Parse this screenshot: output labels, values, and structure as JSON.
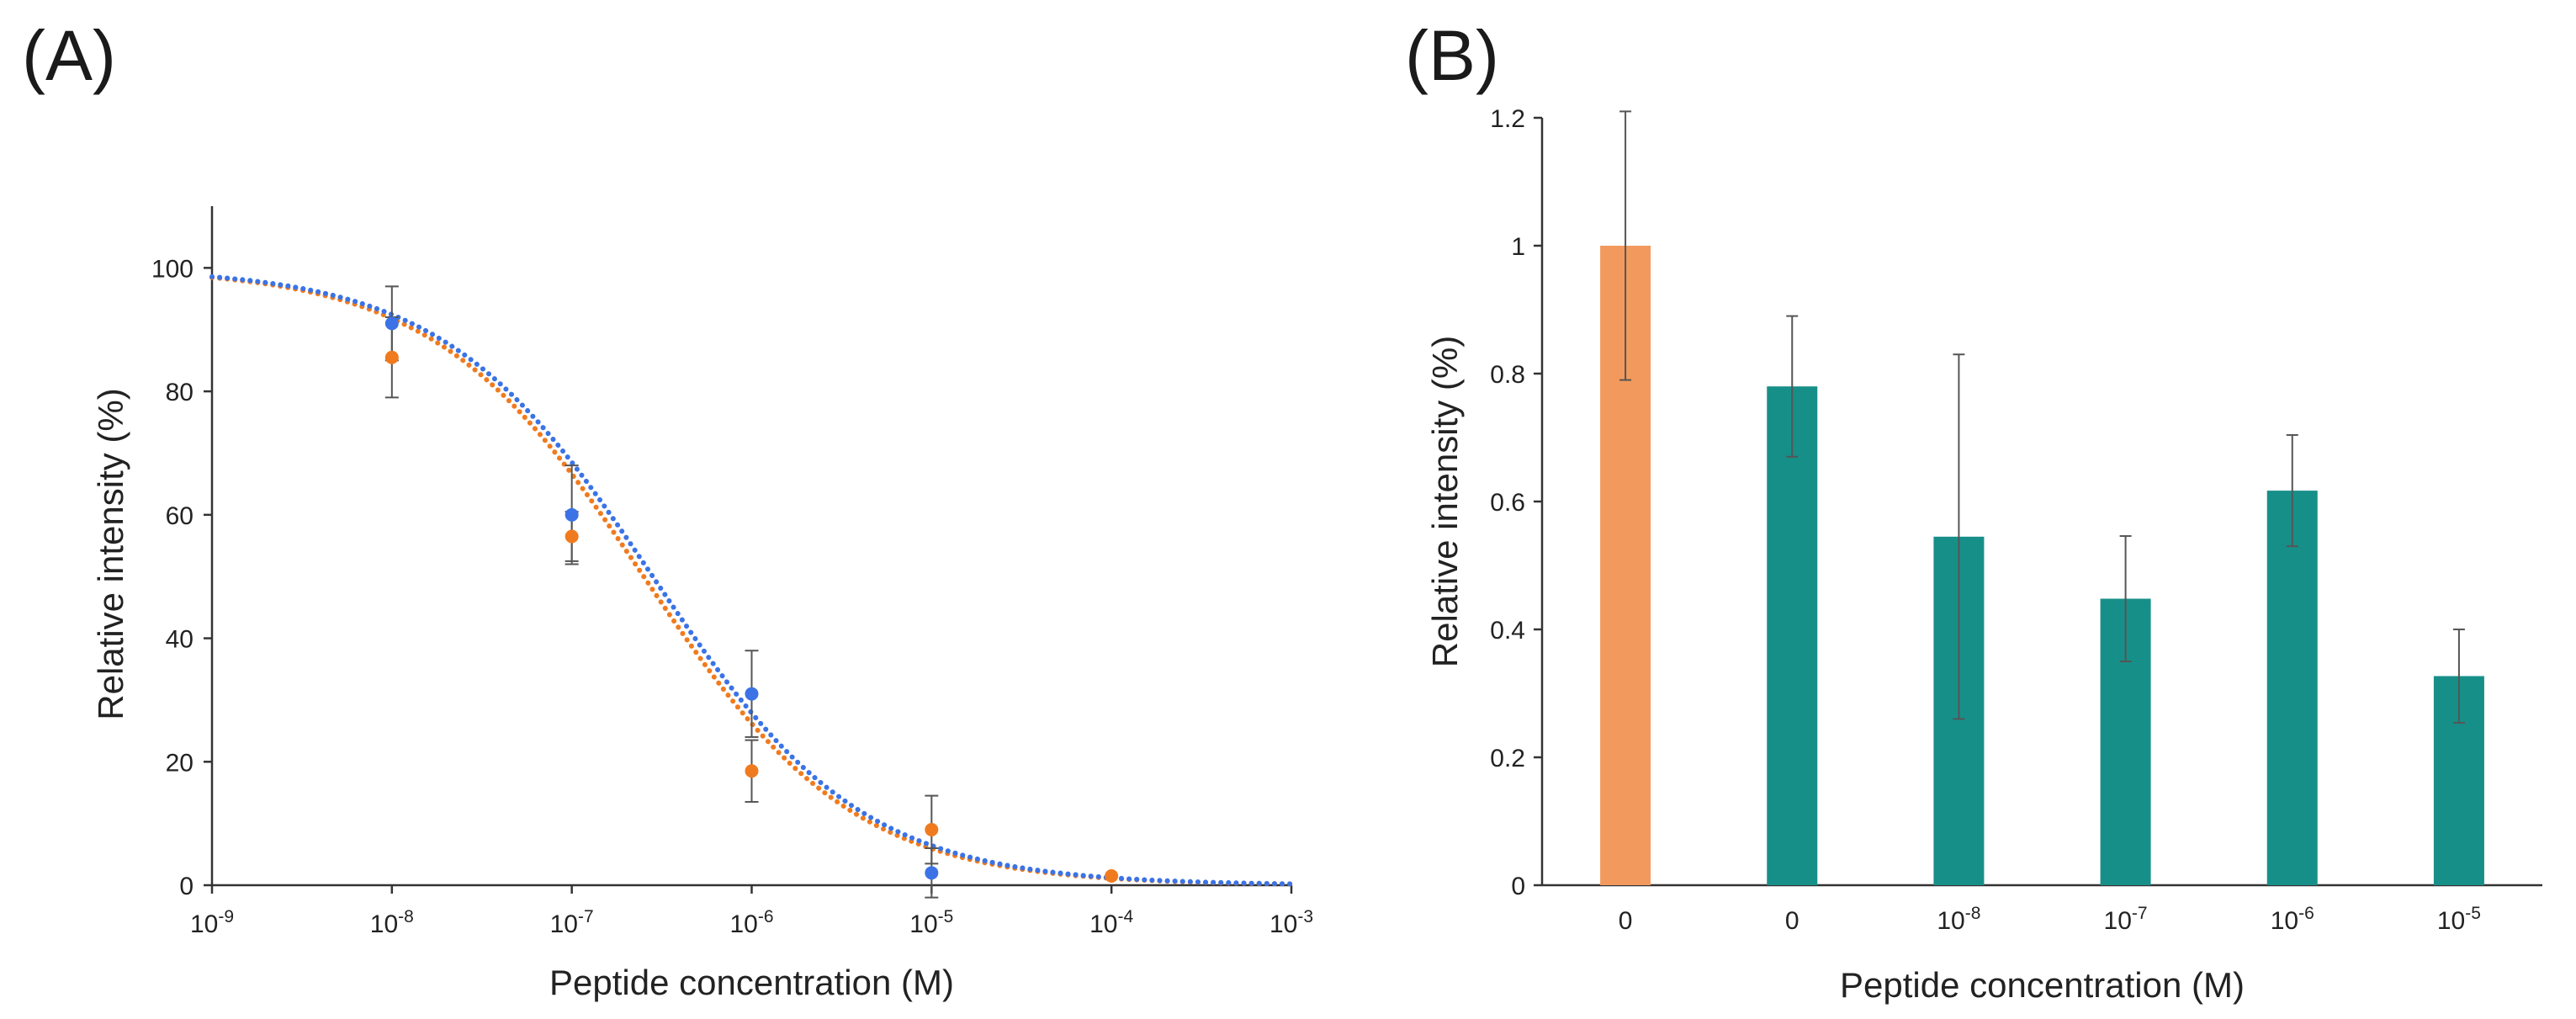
{
  "colors": {
    "orange": "#F07B1E",
    "blue": "#3B73E6",
    "bar_orange": "#F29A5E",
    "bar_teal": "#178F89",
    "axis": "#333333",
    "error_bar": "#555555"
  },
  "panels": {
    "a_label": "(A)",
    "b_label": "(B)"
  },
  "chart_data": [
    {
      "type": "scatter",
      "panel": "A",
      "xscale": "log",
      "xlabel": "Peptide concentration (M)",
      "ylabel": "Relative intensity (%)",
      "xlim_log10": [
        -9,
        -3
      ],
      "ylim": [
        0,
        110
      ],
      "yticks": [
        0,
        20,
        40,
        60,
        80,
        100
      ],
      "xticks": [
        {
          "base": "10",
          "exp": "-9"
        },
        {
          "base": "10",
          "exp": "-8"
        },
        {
          "base": "10",
          "exp": "-7"
        },
        {
          "base": "10",
          "exp": "-6"
        },
        {
          "base": "10",
          "exp": "-5"
        },
        {
          "base": "10",
          "exp": "-4"
        },
        {
          "base": "10",
          "exp": "-3"
        }
      ],
      "series": [
        {
          "name": "orange",
          "color": "#F07B1E",
          "points": [
            {
              "log_x": -8,
              "y": 85.5,
              "err": 6.5
            },
            {
              "log_x": -7,
              "y": 56.5,
              "err": 4.0
            },
            {
              "log_x": -6,
              "y": 18.5,
              "err": 5.0
            },
            {
              "log_x": -5,
              "y": 9.0,
              "err": 5.5
            },
            {
              "log_x": -4,
              "y": 1.5,
              "err": 0
            }
          ],
          "fit": {
            "top": 100,
            "bottom": 0,
            "log_ic50": -6.6,
            "hill": 0.75
          }
        },
        {
          "name": "blue",
          "color": "#3B73E6",
          "points": [
            {
              "log_x": -8,
              "y": 91.0,
              "err": 6.0
            },
            {
              "log_x": -7,
              "y": 60.0,
              "err": 8.0
            },
            {
              "log_x": -6,
              "y": 31.0,
              "err": 7.0
            },
            {
              "log_x": -5,
              "y": 2.0,
              "err": 4.0
            }
          ],
          "fit": {
            "top": 100,
            "bottom": 0,
            "log_ic50": -6.55,
            "hill": 0.75
          }
        }
      ]
    },
    {
      "type": "bar",
      "panel": "B",
      "xlabel": "Peptide concentration (M)",
      "ylabel": "Relative intensity (%)",
      "ylim": [
        0,
        1.2
      ],
      "yticks": [
        "0",
        "0.2",
        "0.4",
        "0.6",
        "0.8",
        "1",
        "1.2"
      ],
      "categories": [
        {
          "base": "0",
          "exp": ""
        },
        {
          "base": "0",
          "exp": ""
        },
        {
          "base": "10",
          "exp": "-8"
        },
        {
          "base": "10",
          "exp": "-7"
        },
        {
          "base": "10",
          "exp": "-6"
        },
        {
          "base": "10",
          "exp": "-5"
        }
      ],
      "values": [
        1.0,
        0.78,
        0.545,
        0.448,
        0.617,
        0.327
      ],
      "errors": [
        0.21,
        0.11,
        0.285,
        0.098,
        0.087,
        0.073
      ],
      "bar_colors": [
        "#F29A5E",
        "#178F89",
        "#178F89",
        "#178F89",
        "#178F89",
        "#178F89"
      ]
    }
  ]
}
